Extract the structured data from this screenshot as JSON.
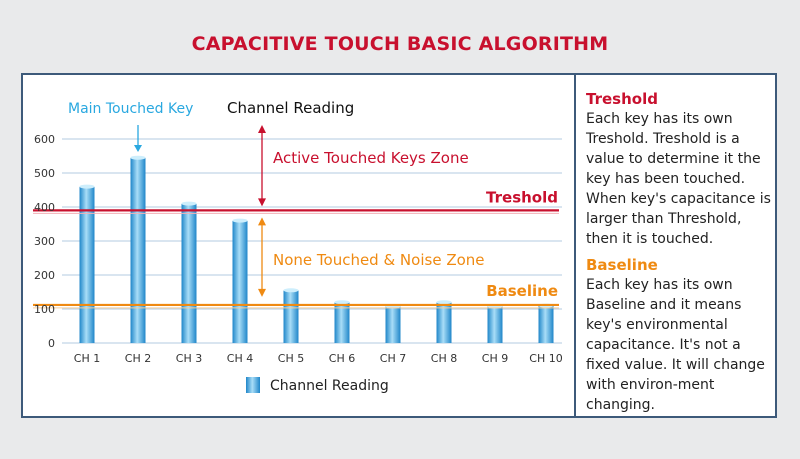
{
  "title": "CAPACITIVE TOUCH BASIC ALGORITHM",
  "colors": {
    "title": "#c8102e",
    "threshold": "#c8102e",
    "baseline": "#ef8a12",
    "main_key": "#29a8e0",
    "bar_light": "#a8ddf7",
    "bar_dark": "#1f86c9",
    "frame": "#3d5a7a",
    "grid": "#b3cbe0"
  },
  "sidebar": {
    "treshold_heading": "Treshold",
    "treshold_text": "Each key has its own Treshold. Treshold is a value to determine it the key has been touched. When key's capacitance is larger than Threshold, then it is touched.",
    "baseline_heading": "Baseline",
    "baseline_text": "Each key has its own Baseline and it means key's environmental capacitance. It's not a fixed value. It will change with environ-ment changing."
  },
  "chart_data": {
    "type": "bar",
    "categories": [
      "CH 1",
      "CH 2",
      "CH 3",
      "CH 4",
      "CH 5",
      "CH 6",
      "CH 7",
      "CH 8",
      "CH 9",
      "CH 10"
    ],
    "values": [
      460,
      545,
      410,
      360,
      155,
      120,
      108,
      120,
      108,
      110
    ],
    "series": [
      {
        "name": "Channel Reading",
        "values": [
          460,
          545,
          410,
          360,
          155,
          120,
          108,
          120,
          108,
          110
        ]
      }
    ],
    "ylim": [
      0,
      600
    ],
    "yticks": [
      0,
      100,
      200,
      300,
      400,
      500,
      600
    ],
    "grid": true,
    "legend": "bottom-center",
    "threshold": {
      "value": 390,
      "label": "Treshold"
    },
    "baseline": {
      "value": 112,
      "label": "Baseline"
    },
    "annotations": {
      "main_key": "Main Touched Key",
      "channel_reading": "Channel Reading",
      "active_zone": "Active Touched Keys Zone",
      "noise_zone": "None Touched & Noise Zone"
    }
  }
}
